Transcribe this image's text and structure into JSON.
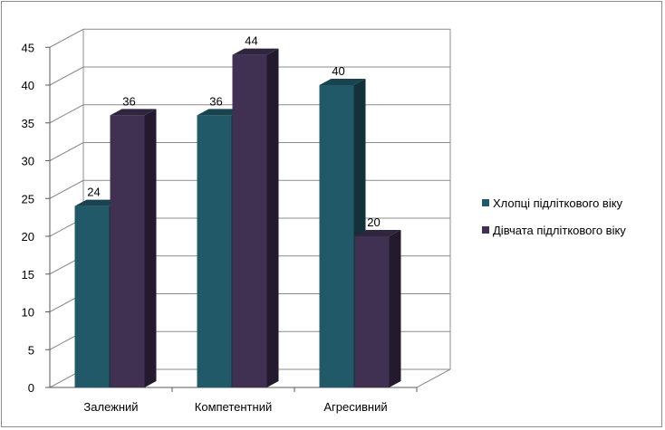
{
  "chart_data": {
    "type": "bar",
    "categories": [
      "Залежний",
      "Компетентний",
      "Агресивний"
    ],
    "series": [
      {
        "name": "Хлопці підліткового віку",
        "values": [
          24,
          36,
          40
        ],
        "color": "#215968"
      },
      {
        "name": "Дівчата підліткового віку",
        "values": [
          36,
          44,
          20
        ],
        "color": "#403152"
      }
    ],
    "ylim": [
      0,
      45
    ],
    "yticks": [
      0,
      5,
      10,
      15,
      20,
      25,
      30,
      35,
      40,
      45
    ],
    "grid": true,
    "legend_position": "right",
    "style": "3d-clustered-column"
  }
}
